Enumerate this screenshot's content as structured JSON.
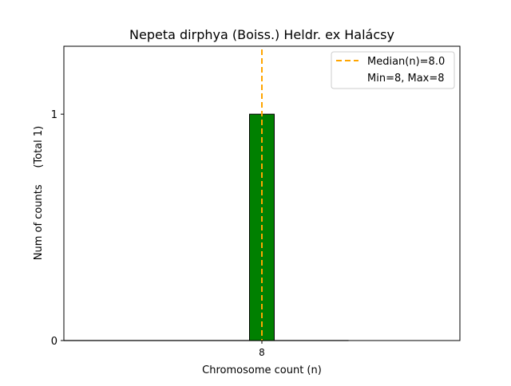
{
  "chart_data": {
    "type": "bar",
    "title": "Nepeta dirphya (Boiss.) Heldr. ex Halácsy",
    "xlabel": "Chromosome count (n)",
    "ylabel": "Num of counts     (Total 1)",
    "x": [
      8
    ],
    "values": [
      1
    ],
    "bin_width": 1,
    "xlim": [
      0,
      16
    ],
    "ylim": [
      0,
      1.3
    ],
    "xticks": [
      8
    ],
    "xtick_labels": [
      "8"
    ],
    "yticks": [
      0,
      1
    ],
    "ytick_labels": [
      "0",
      "1"
    ],
    "grid": false,
    "bar_color": "#008000",
    "bar_edge_color": "#000000",
    "median": 8.0,
    "median_color": "#FFA500",
    "legend": {
      "placement": "top-right",
      "entries": [
        "Median(n)=8.0",
        "Min=8, Max=8"
      ]
    }
  }
}
